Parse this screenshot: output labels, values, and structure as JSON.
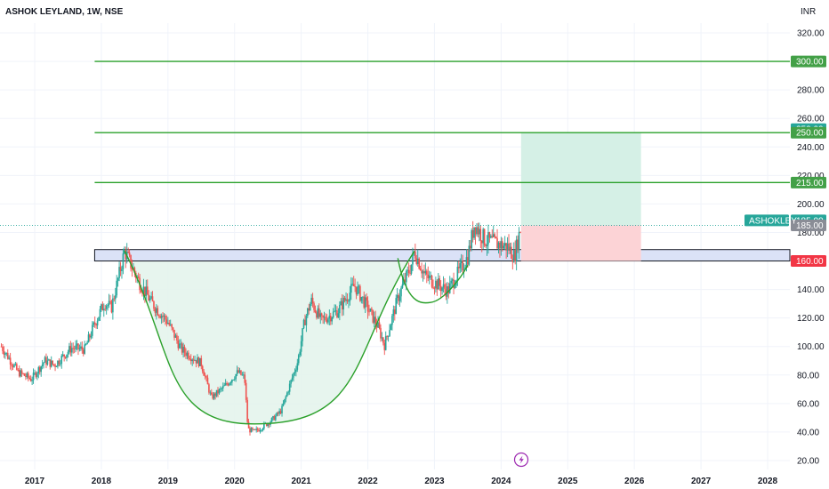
{
  "header": {
    "title": "ASHOK LEYLAND, 1W, NSE",
    "currency": "INR"
  },
  "colors": {
    "up": "#26a69a",
    "down": "#ef5350",
    "level": "#2aa02a",
    "target_zone": "#d5f0e6",
    "stop_zone": "#fcd3d6",
    "breakout_zone": "#dbe2f7",
    "cup_fill": "#e4f4ec",
    "badge_red": "#f23645",
    "badge_green": "#43a047",
    "badge_gray": "#8a8d96",
    "badge_teal": "#26a69a"
  },
  "chart_data": {
    "type": "candlestick",
    "title": "ASHOK LEYLAND, 1W, NSE",
    "symbol": "ASHOKLEY",
    "y_unit": "INR",
    "ylim": [
      14,
      328
    ],
    "xlim": [
      2016.5,
      2028.4
    ],
    "y_ticks": [
      "320.00",
      "300.00",
      "280.00",
      "260.00",
      "240.00",
      "220.00",
      "200.00",
      "180.00",
      "160.00",
      "140.00",
      "120.00",
      "100.00",
      "80.00",
      "60.00",
      "40.00",
      "20.00"
    ],
    "x_ticks": [
      "2017",
      "2018",
      "2019",
      "2020",
      "2021",
      "2022",
      "2023",
      "2024",
      "2025",
      "2026",
      "2027",
      "2028"
    ],
    "price_path": [
      [
        2016.5,
        100
      ],
      [
        2016.75,
        82
      ],
      [
        2016.95,
        77
      ],
      [
        2017.15,
        90
      ],
      [
        2017.3,
        87
      ],
      [
        2017.55,
        99
      ],
      [
        2017.75,
        98
      ],
      [
        2017.9,
        116
      ],
      [
        2018.05,
        131
      ],
      [
        2018.15,
        127
      ],
      [
        2018.35,
        167
      ],
      [
        2018.55,
        147
      ],
      [
        2018.75,
        131
      ],
      [
        2019.0,
        117
      ],
      [
        2019.2,
        98
      ],
      [
        2019.5,
        88
      ],
      [
        2019.65,
        64
      ],
      [
        2019.85,
        72
      ],
      [
        2020.05,
        82
      ],
      [
        2020.15,
        78
      ],
      [
        2020.2,
        42
      ],
      [
        2020.3,
        40
      ],
      [
        2020.55,
        48
      ],
      [
        2020.7,
        55
      ],
      [
        2020.95,
        90
      ],
      [
        2021.05,
        118
      ],
      [
        2021.15,
        132
      ],
      [
        2021.3,
        118
      ],
      [
        2021.55,
        125
      ],
      [
        2021.8,
        143
      ],
      [
        2021.95,
        131
      ],
      [
        2022.15,
        114
      ],
      [
        2022.25,
        101
      ],
      [
        2022.45,
        134
      ],
      [
        2022.65,
        157
      ],
      [
        2022.7,
        167
      ],
      [
        2022.85,
        150
      ],
      [
        2023.0,
        145
      ],
      [
        2023.2,
        139
      ],
      [
        2023.35,
        151
      ],
      [
        2023.5,
        163
      ],
      [
        2023.6,
        186
      ],
      [
        2023.75,
        175
      ],
      [
        2023.95,
        172
      ],
      [
        2024.1,
        170
      ],
      [
        2024.2,
        163
      ],
      [
        2024.3,
        185
      ]
    ],
    "horizontal_levels": [
      {
        "price": 300,
        "label": "300.00",
        "x_start": 2017.9
      },
      {
        "price": 250,
        "label": "250.00",
        "x_start": 2017.9
      },
      {
        "price": 215,
        "label": "215.00",
        "x_start": 2017.9
      }
    ],
    "breakout_zone": {
      "top": 168,
      "bottom": 160,
      "x_start": 2017.9,
      "label": "160.00"
    },
    "position": {
      "entry": 185,
      "stop": 160,
      "target": 250,
      "x_start": 2024.3,
      "x_end": 2026.1
    },
    "current_price": {
      "value": 185,
      "label": "185.00",
      "symbol": "ASHOKLEY"
    },
    "axis_badges": [
      {
        "price": 300,
        "label": "300.00",
        "color_key": "badge_green"
      },
      {
        "price": 252.5,
        "label": "250.00",
        "color_key": "badge_teal"
      },
      {
        "price": 250,
        "label": "250.00",
        "color_key": "badge_green"
      },
      {
        "price": 215,
        "label": "215.00",
        "color_key": "badge_green"
      },
      {
        "price": 188.5,
        "label": "185.00",
        "color_key": "badge_teal"
      },
      {
        "price": 185,
        "label": "185.00",
        "color_key": "badge_gray"
      },
      {
        "price": 160,
        "label": "160.00",
        "color_key": "badge_red"
      }
    ],
    "cup": {
      "left": [
        2018.35,
        167
      ],
      "bottom": [
        2020.5,
        46
      ],
      "right": [
        2022.7,
        167
      ]
    },
    "handle": {
      "left": [
        2022.45,
        162
      ],
      "bottom": [
        2022.95,
        131
      ],
      "right": [
        2023.5,
        157
      ]
    },
    "grid": true
  }
}
